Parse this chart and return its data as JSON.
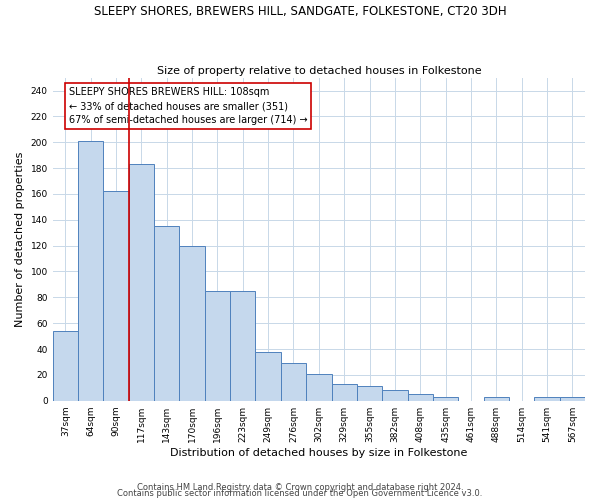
{
  "title": "SLEEPY SHORES, BREWERS HILL, SANDGATE, FOLKESTONE, CT20 3DH",
  "subtitle": "Size of property relative to detached houses in Folkestone",
  "xlabel": "Distribution of detached houses by size in Folkestone",
  "ylabel": "Number of detached properties",
  "categories": [
    "37sqm",
    "64sqm",
    "90sqm",
    "117sqm",
    "143sqm",
    "170sqm",
    "196sqm",
    "223sqm",
    "249sqm",
    "276sqm",
    "302sqm",
    "329sqm",
    "355sqm",
    "382sqm",
    "408sqm",
    "435sqm",
    "461sqm",
    "488sqm",
    "514sqm",
    "541sqm",
    "567sqm"
  ],
  "values": [
    54,
    201,
    162,
    183,
    135,
    120,
    85,
    85,
    38,
    29,
    21,
    13,
    11,
    8,
    5,
    3,
    0,
    3,
    0,
    3,
    3
  ],
  "bar_color": "#c5d8ed",
  "bar_edge_color": "#4f81bd",
  "bar_linewidth": 0.7,
  "vline_x": 2.5,
  "vline_color": "#cc0000",
  "vline_linewidth": 1.2,
  "annotation_text": "SLEEPY SHORES BREWERS HILL: 108sqm\n← 33% of detached houses are smaller (351)\n67% of semi-detached houses are larger (714) →",
  "annotation_box_color": "#ffffff",
  "annotation_box_edge": "#cc0000",
  "ylim": [
    0,
    250
  ],
  "yticks": [
    0,
    20,
    40,
    60,
    80,
    100,
    120,
    140,
    160,
    180,
    200,
    220,
    240
  ],
  "footer1": "Contains HM Land Registry data © Crown copyright and database right 2024.",
  "footer2": "Contains public sector information licensed under the Open Government Licence v3.0.",
  "bg_color": "#ffffff",
  "grid_color": "#c8d8e8",
  "title_fontsize": 8.5,
  "subtitle_fontsize": 8.0,
  "axis_label_fontsize": 8.0,
  "tick_fontsize": 6.5,
  "annotation_fontsize": 7.0,
  "footer_fontsize": 6.0
}
